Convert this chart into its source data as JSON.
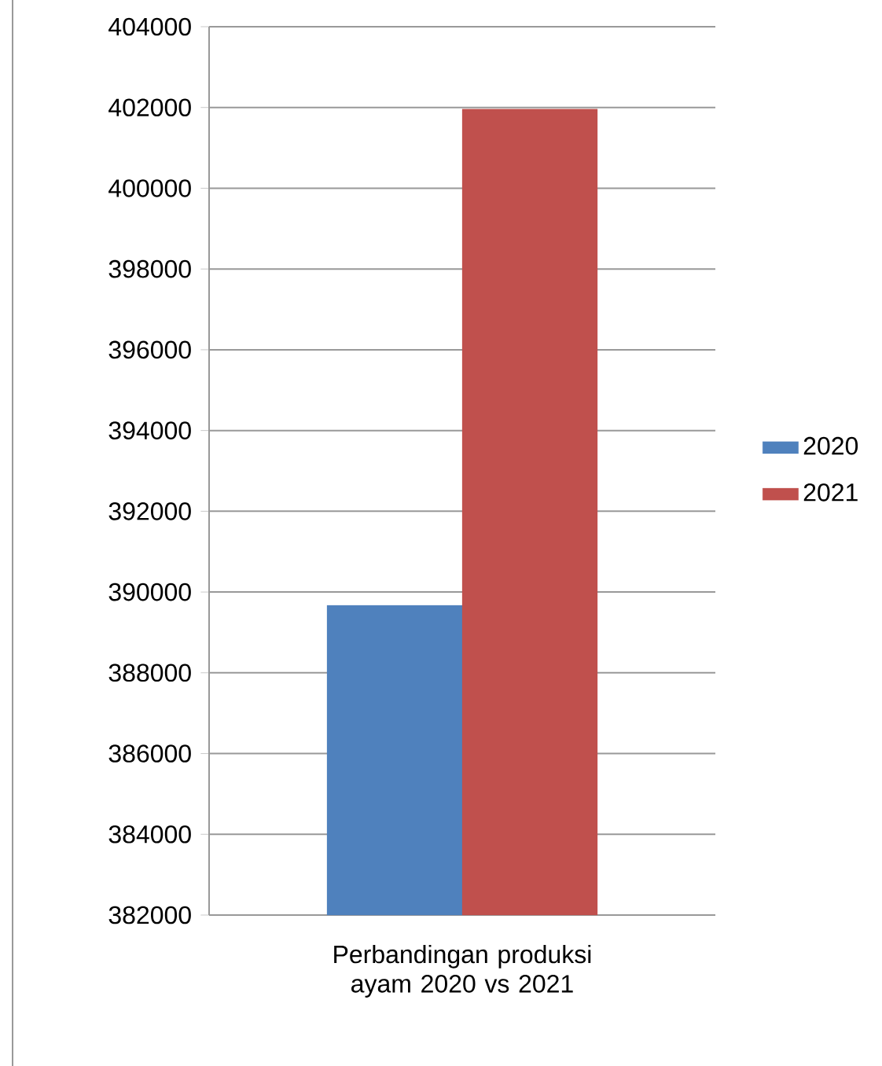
{
  "chart_data": {
    "type": "bar",
    "categories": [
      "Perbandingan produksi ayam 2020 vs 2021"
    ],
    "series": [
      {
        "name": "2020",
        "color": "#4f81bd",
        "values": [
          389670
        ]
      },
      {
        "name": "2021",
        "color": "#c0504d",
        "values": [
          401960
        ]
      }
    ],
    "ylim": [
      382000,
      404000
    ],
    "yticks": [
      382000,
      384000,
      386000,
      388000,
      390000,
      392000,
      394000,
      396000,
      398000,
      400000,
      402000,
      404000
    ],
    "grid": "y",
    "legend": "right"
  }
}
